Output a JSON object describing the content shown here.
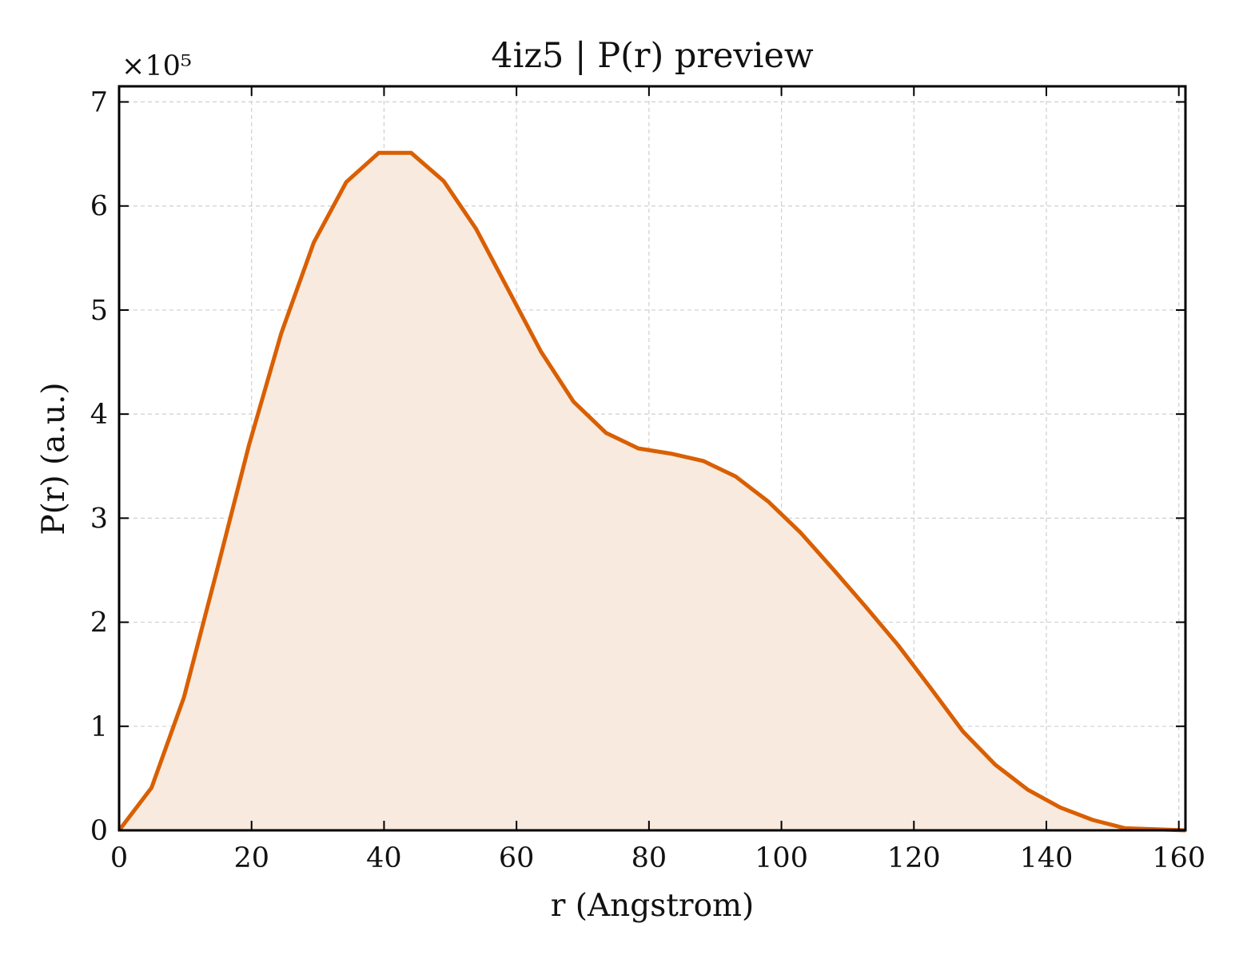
{
  "chart_data": {
    "type": "area",
    "title": "4iz5 | P(r) preview",
    "xlabel": "r (Angstrom)",
    "ylabel": "P(r) (a.u.)",
    "y_scale_label": "×10⁵",
    "xlim": [
      0,
      161
    ],
    "ylim": [
      0,
      7.15
    ],
    "y_multiplier": 100000,
    "grid": true,
    "x_ticks": [
      0,
      20,
      40,
      60,
      80,
      100,
      120,
      140,
      160
    ],
    "y_ticks": [
      0,
      1,
      2,
      3,
      4,
      5,
      6,
      7
    ],
    "series": [
      {
        "color": "#d95f02",
        "fill_color": "#f8eadf",
        "x": [
          0,
          4.9,
          9.8,
          14.7,
          19.6,
          24.5,
          29.4,
          34.3,
          39.2,
          44.1,
          49.0,
          53.9,
          58.8,
          63.7,
          68.6,
          73.5,
          78.4,
          83.3,
          88.2,
          93.1,
          98.0,
          102.9,
          107.8,
          112.7,
          117.6,
          122.5,
          127.4,
          132.3,
          137.2,
          142.1,
          147.0,
          151.9,
          156.8,
          161.0
        ],
        "values": [
          0,
          0.41,
          1.28,
          2.48,
          3.7,
          4.78,
          5.65,
          6.23,
          6.51,
          6.51,
          6.24,
          5.78,
          5.19,
          4.6,
          4.12,
          3.82,
          3.67,
          3.62,
          3.55,
          3.4,
          3.16,
          2.86,
          2.51,
          2.15,
          1.78,
          1.37,
          0.95,
          0.63,
          0.39,
          0.22,
          0.1,
          0.02,
          0.01,
          0.0
        ]
      }
    ]
  }
}
